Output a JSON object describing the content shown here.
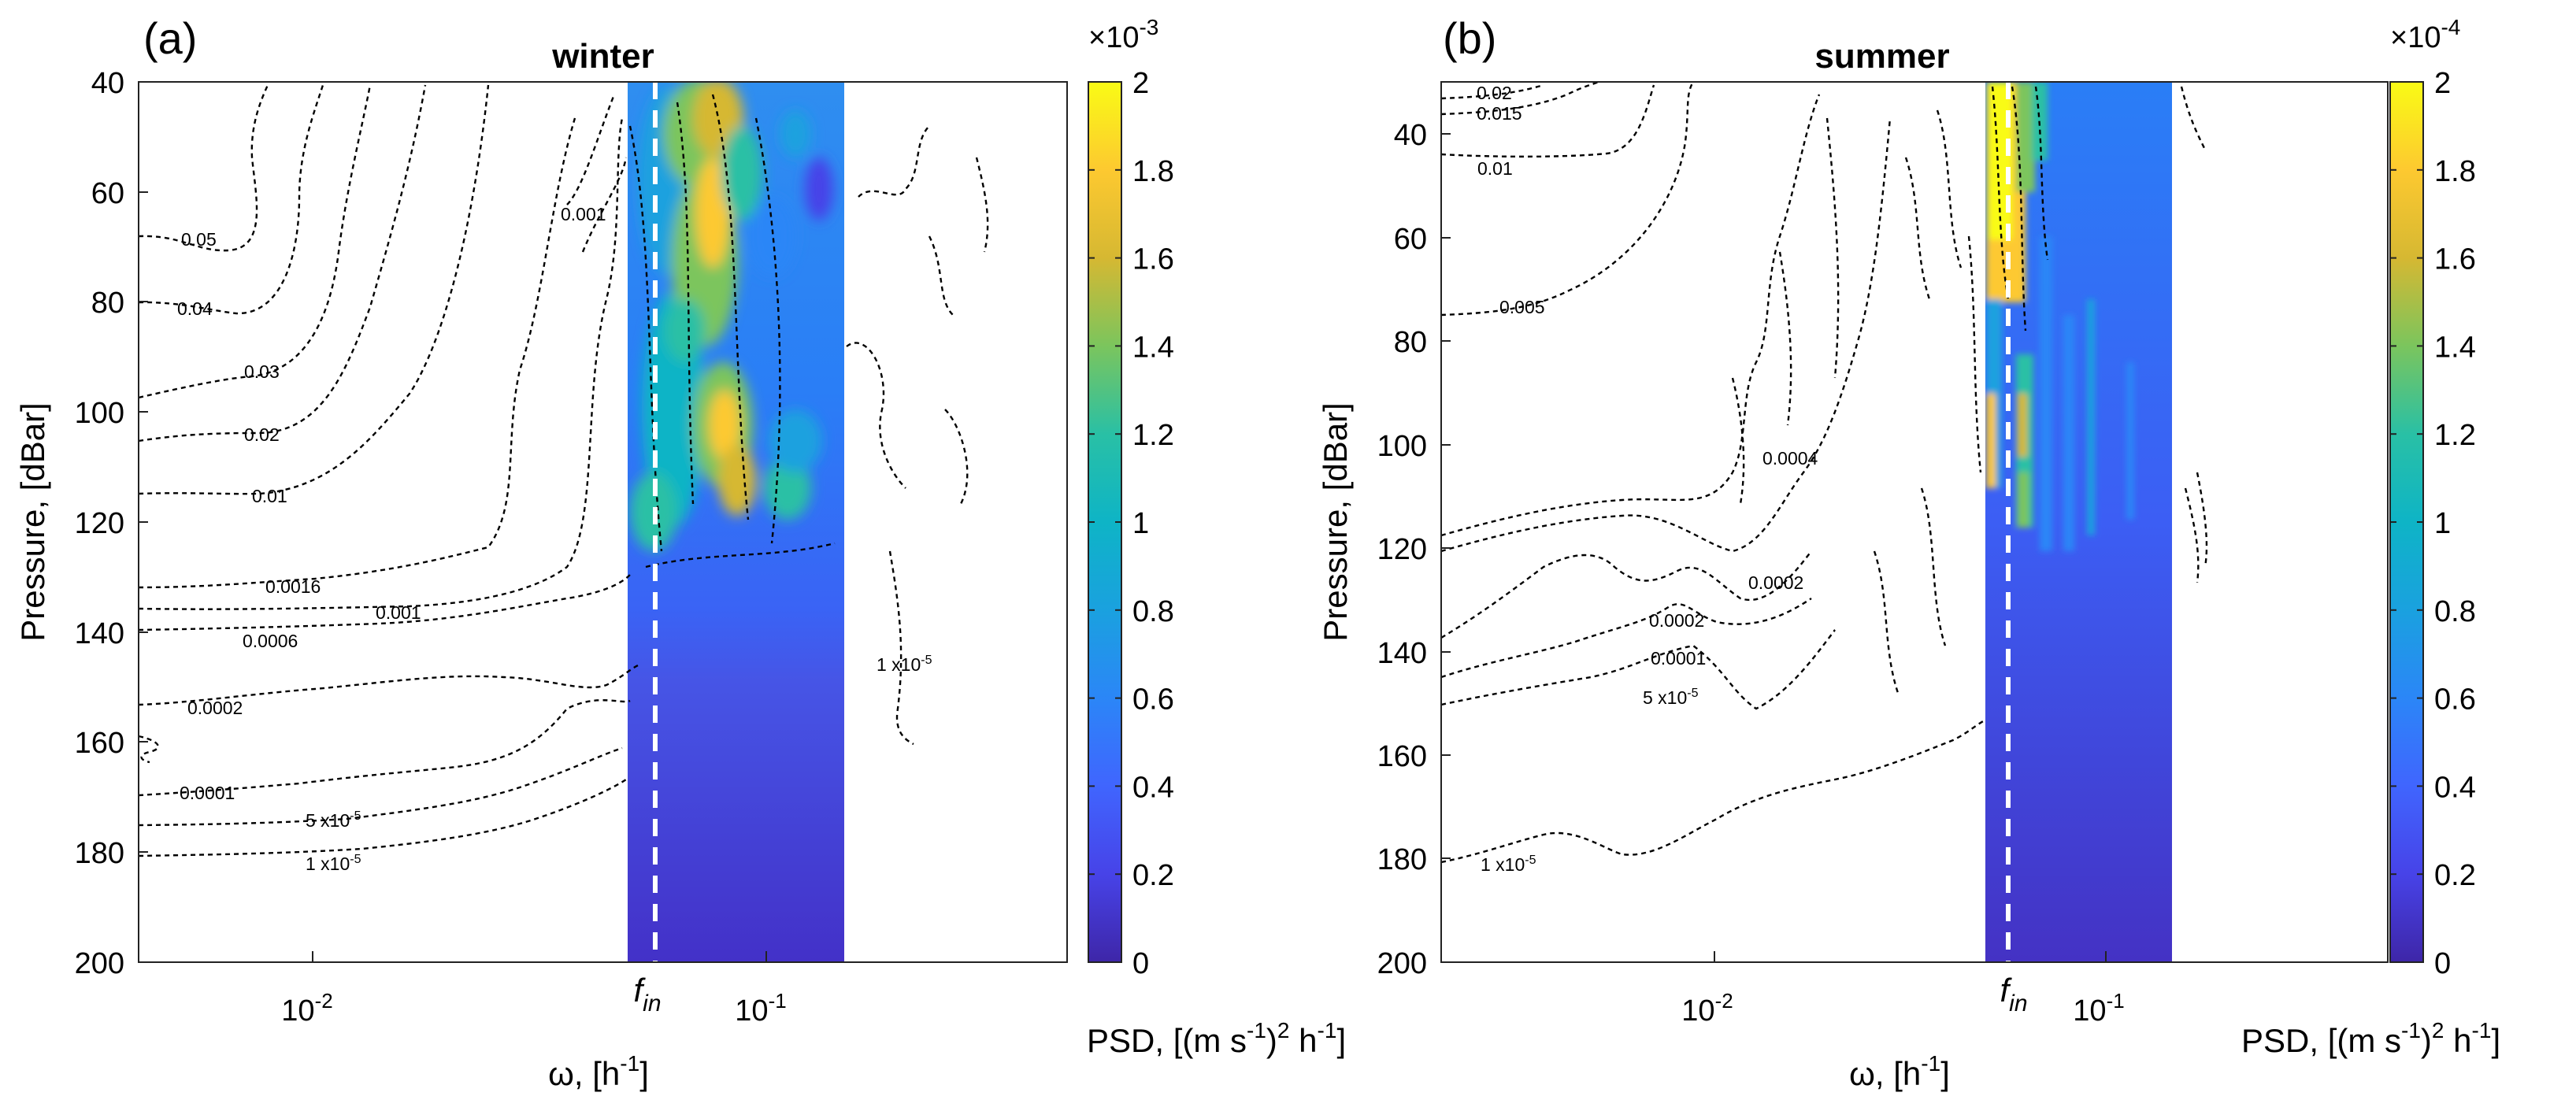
{
  "panels": [
    {
      "label": "(a)",
      "title": "winter",
      "xlabel": "ω, [h",
      "xlabel_sup": "-1",
      "xlabel_end": "]",
      "ylabel": "Pressure, [dBar]",
      "yticks": [
        "40",
        "60",
        "80",
        "100",
        "120",
        "140",
        "160",
        "180",
        "200"
      ],
      "xticks": [
        {
          "base": "10",
          "exp": "-2"
        },
        {
          "base": "10",
          "exp": "-1"
        }
      ],
      "f_label": "f",
      "f_sub": "in",
      "colorbar": {
        "exponent_text": "×10",
        "exponent": "-3",
        "ticks": [
          "0",
          "0.2",
          "0.4",
          "0.6",
          "0.8",
          "1",
          "1.2",
          "1.4",
          "1.6",
          "1.8",
          "2"
        ],
        "unit_pre": "PSD, [(m s",
        "unit_sup1": "-1",
        "unit_mid": ")",
        "unit_sup2": "2",
        "unit_mid2": " h",
        "unit_sup3": "-1",
        "unit_end": "]"
      },
      "contour_labels": [
        "0.05",
        "0.04",
        "0.03",
        "0.02",
        "0.01",
        "0.0016",
        "0.001",
        "0.0006",
        "0.0002",
        "0.0001",
        "5 x10",
        "1 x10",
        "0.001",
        "1 x10"
      ],
      "contour_label_sups": [
        "-5"
      ]
    },
    {
      "label": "(b)",
      "title": "summer",
      "xlabel": "ω, [h",
      "xlabel_sup": "-1",
      "xlabel_end": "]",
      "ylabel": "Pressure, [dBar]",
      "yticks": [
        "40",
        "60",
        "80",
        "100",
        "120",
        "140",
        "160",
        "180",
        "200"
      ],
      "xticks": [
        {
          "base": "10",
          "exp": "-2"
        },
        {
          "base": "10",
          "exp": "-1"
        }
      ],
      "f_label": "f",
      "f_sub": "in",
      "colorbar": {
        "exponent_text": "×10",
        "exponent": "-4",
        "ticks": [
          "0",
          "0.2",
          "0.4",
          "0.6",
          "0.8",
          "1",
          "1.2",
          "1.4",
          "1.6",
          "1.8",
          "2"
        ],
        "unit_pre": "PSD, [(m s",
        "unit_sup1": "-1",
        "unit_mid": ")",
        "unit_sup2": "2",
        "unit_mid2": " h",
        "unit_sup3": "-1",
        "unit_end": "]"
      },
      "contour_labels": [
        "0.02",
        "0.015",
        "0.01",
        "0.005",
        "0.0004",
        "0.0002",
        "0.0002",
        "0.0001",
        "5 x10",
        "1 x10"
      ],
      "contour_label_sups": [
        "-5"
      ]
    }
  ],
  "chart_data": [
    {
      "type": "heatmap",
      "title": "winter",
      "xlabel": "ω, [h-1]",
      "ylabel": "Pressure, [dBar]",
      "xscale": "log",
      "xlim": [
        0.0035,
        0.65
      ],
      "ylim": [
        200,
        40
      ],
      "f_in": 0.063,
      "heatmap_x_range": [
        0.055,
        0.17
      ],
      "colorbar_range": [
        0,
        0.002
      ],
      "colorbar_label": "PSD, [(m s-1)2 h-1]",
      "contour_levels": [
        "0.05",
        "0.04",
        "0.03",
        "0.02",
        "0.01",
        "0.0016",
        "0.001",
        "0.0006",
        "0.0002",
        "0.0001",
        "5x10-5",
        "1x10-5"
      ],
      "high_psd_pressure_range": [
        40,
        130
      ],
      "peak_psd": 0.0019
    },
    {
      "type": "heatmap",
      "title": "summer",
      "xlabel": "ω, [h-1]",
      "ylabel": "Pressure, [dBar]",
      "xscale": "log",
      "xlim": [
        0.0018,
        0.65
      ],
      "ylim": [
        200,
        30
      ],
      "f_in": 0.063,
      "heatmap_x_range": [
        0.055,
        0.17
      ],
      "colorbar_range": [
        0,
        0.0002
      ],
      "colorbar_label": "PSD, [(m s-1)2 h-1]",
      "contour_levels": [
        "0.02",
        "0.015",
        "0.01",
        "0.005",
        "0.0004",
        "0.0002",
        "0.0001",
        "5x10-5",
        "1x10-5"
      ],
      "high_psd_pressure_range": [
        30,
        120
      ],
      "peak_psd": 0.0002
    }
  ]
}
